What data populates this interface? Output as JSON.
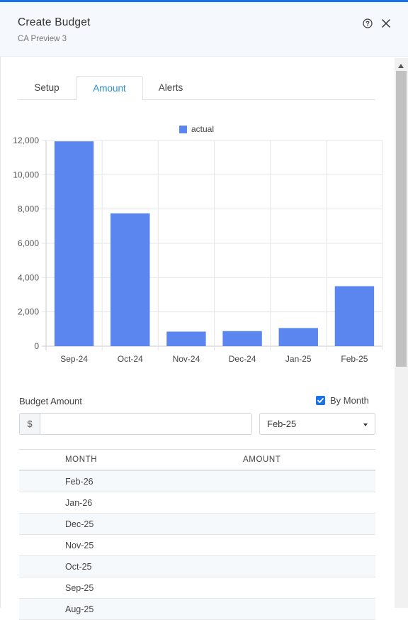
{
  "header": {
    "title": "Create Budget",
    "subtitle": "CA Preview 3"
  },
  "tabs": [
    {
      "label": "Setup",
      "active": false
    },
    {
      "label": "Amount",
      "active": true
    },
    {
      "label": "Alerts",
      "active": false
    }
  ],
  "chart_data": {
    "type": "bar",
    "categories": [
      "Sep-24",
      "Oct-24",
      "Nov-24",
      "Dec-24",
      "Jan-25",
      "Feb-25"
    ],
    "series": [
      {
        "name": "actual",
        "values": [
          11950,
          7750,
          850,
          880,
          1060,
          3500
        ],
        "color": "#5b86f0"
      }
    ],
    "yticks": [
      "0",
      "2,000",
      "4,000",
      "6,000",
      "8,000",
      "10,000",
      "12,000"
    ],
    "ylim": [
      0,
      12000
    ],
    "grid": true,
    "legend_position": "top-center"
  },
  "budget": {
    "label": "Budget Amount",
    "currency_symbol": "$",
    "amount_value": "",
    "by_month_label": "By Month",
    "by_month_checked": true,
    "selected_month": "Feb-25"
  },
  "table": {
    "headers": {
      "month": "MONTH",
      "amount": "AMOUNT"
    },
    "rows": [
      "Feb-26",
      "Jan-26",
      "Dec-25",
      "Nov-25",
      "Oct-25",
      "Sep-25",
      "Aug-25"
    ]
  },
  "colors": {
    "accent": "#1a73e8",
    "tab_active": "#2a8fc8",
    "bar": "#5b86f0"
  },
  "icons": {
    "help": "help-circle-icon",
    "close": "close-icon",
    "scroll_up": "scroll-up-arrow-icon"
  }
}
